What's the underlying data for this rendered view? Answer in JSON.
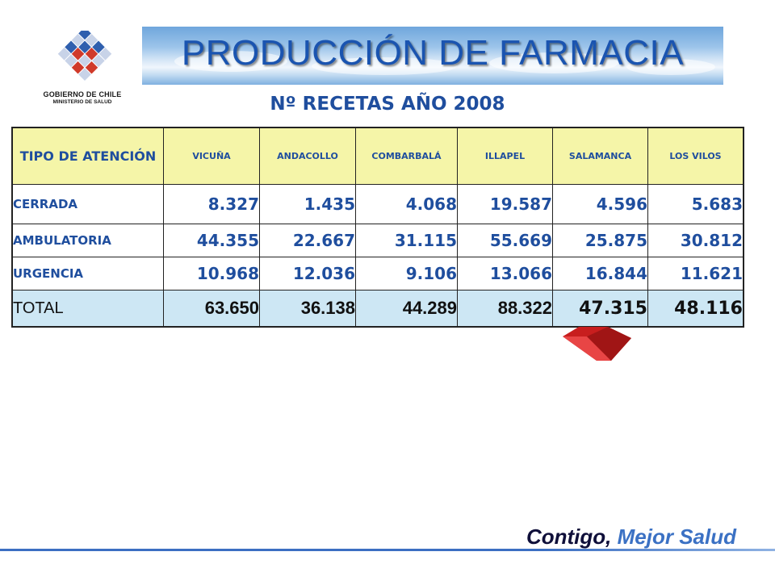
{
  "logo": {
    "line1": "GOBIERNO DE CHILE",
    "line2": "MINISTERIO DE SALUD"
  },
  "banner": {
    "title": "PRODUCCIÓN DE FARMACIA"
  },
  "subtitle": "Nº RECETAS AÑO 2008",
  "table": {
    "header": [
      "TIPO DE ATENCIÓN",
      "VICUÑA",
      "ANDACOLLO",
      "COMBARBALÁ",
      "ILLAPEL",
      "SALAMANCA",
      "LOS VILOS"
    ],
    "rows": [
      {
        "label": "CERRADA",
        "values": [
          "8.327",
          "1.435",
          "4.068",
          "19.587",
          "4.596",
          "5.683"
        ]
      },
      {
        "label": "AMBULATORIA",
        "values": [
          "44.355",
          "22.667",
          "31.115",
          "55.669",
          "25.875",
          "30.812"
        ]
      },
      {
        "label": "URGENCIA",
        "values": [
          "10.968",
          "12.036",
          "9.106",
          "13.066",
          "16.844",
          "11.621"
        ]
      }
    ],
    "total": {
      "label": "TOTAL",
      "values": [
        "63.650",
        "36.138",
        "44.289",
        "88.322",
        "47.315",
        "48.116"
      ]
    }
  },
  "footer": {
    "slogan_part1": "Contigo,",
    "slogan_part2": "Mejor Salud"
  },
  "colors": {
    "title_blue": "#1a54b0",
    "text_blue": "#1f4e9e",
    "header_bg": "#f5f5a8",
    "total_bg": "#cde7f4",
    "deco_red": "#d42424"
  }
}
